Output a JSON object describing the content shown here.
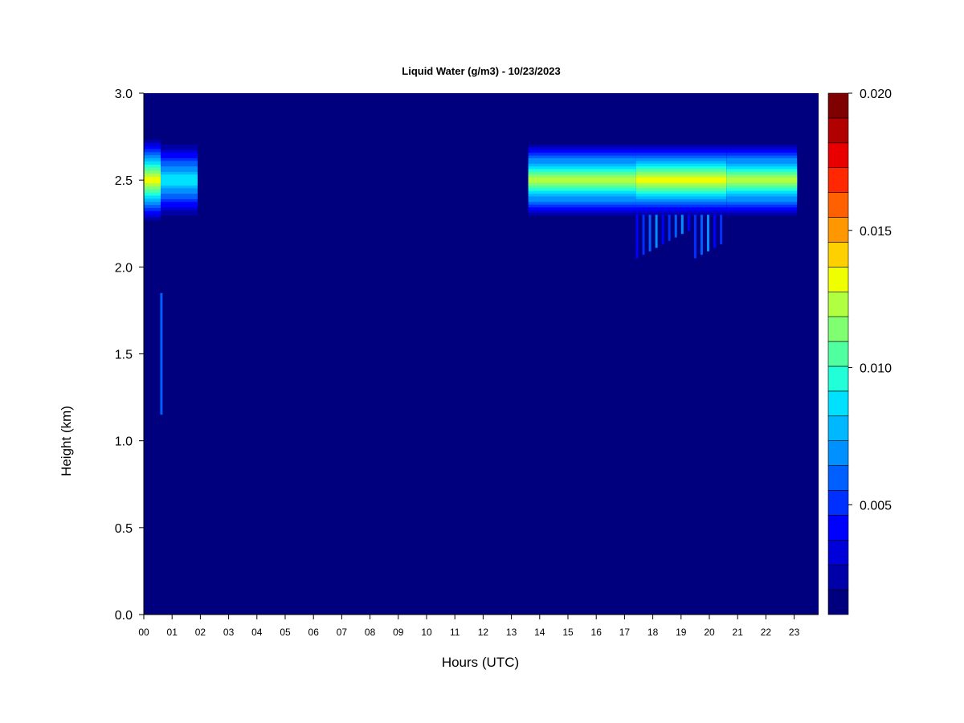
{
  "chart_data": {
    "type": "heatmap",
    "title": "Liquid Water (g/m3) - 10/23/2023",
    "xlabel": "Hours (UTC)",
    "ylabel": "Height (km)",
    "x_ticks": [
      "00",
      "01",
      "02",
      "03",
      "04",
      "05",
      "06",
      "07",
      "08",
      "09",
      "10",
      "11",
      "12",
      "13",
      "14",
      "15",
      "16",
      "17",
      "18",
      "19",
      "20",
      "21",
      "22",
      "23"
    ],
    "y_ticks": [
      "0.0",
      "0.5",
      "1.0",
      "1.5",
      "2.0",
      "2.5",
      "3.0"
    ],
    "xlim": [
      0,
      23.9
    ],
    "ylim": [
      0,
      3.0
    ],
    "colorbar": {
      "ticks": [
        "0.005",
        "0.010",
        "0.015",
        "0.020"
      ],
      "range": [
        0.001,
        0.02
      ],
      "levels": 19,
      "colors": [
        "#00007f",
        "#0000a8",
        "#0000d8",
        "#0000ff",
        "#0030ff",
        "#0060ff",
        "#0090ff",
        "#00b8ff",
        "#00e0ff",
        "#20ffd8",
        "#50ffa0",
        "#80ff70",
        "#b0ff40",
        "#f0ff00",
        "#ffd000",
        "#ff9800",
        "#ff6000",
        "#ff2800",
        "#e80000",
        "#b00000",
        "#7f0000"
      ],
      "background_color": "#00007f"
    },
    "features": [
      {
        "x_start": 0.0,
        "x_end": 0.6,
        "y_center": 2.5,
        "y_half": 0.25,
        "peak": 0.013
      },
      {
        "x_start": 0.6,
        "x_end": 1.9,
        "y_center": 2.5,
        "y_half": 0.22,
        "peak": 0.009
      },
      {
        "x_start": 13.6,
        "x_end": 23.1,
        "y_center": 2.5,
        "y_half": 0.22,
        "peak": 0.012
      },
      {
        "x_start": 17.4,
        "x_end": 20.6,
        "y_center": 2.5,
        "y_half": 0.22,
        "peak": 0.013
      }
    ]
  }
}
